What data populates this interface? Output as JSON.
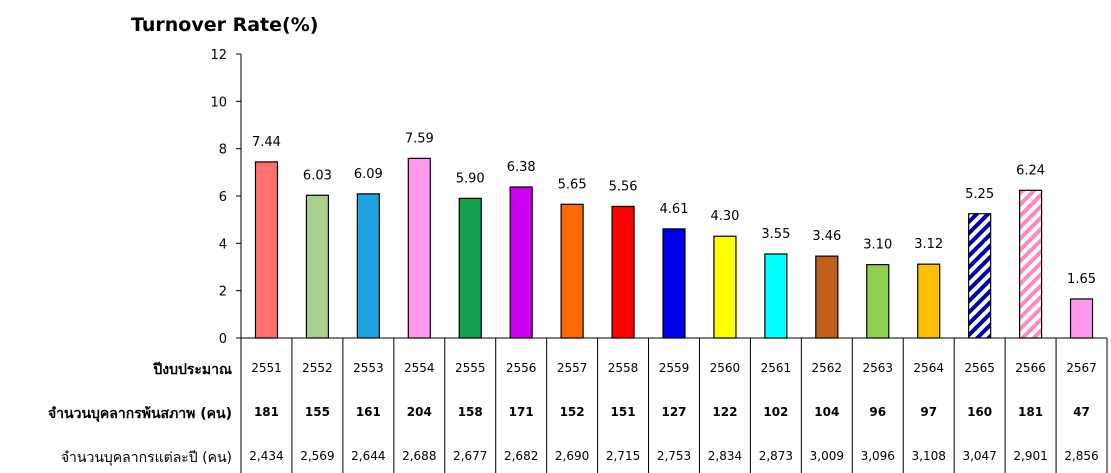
{
  "chart_data": {
    "type": "bar",
    "title": "Turnover Rate(%)",
    "ylim": [
      0,
      12
    ],
    "yticks": [
      0,
      2,
      4,
      6,
      8,
      10,
      12
    ],
    "categories": [
      "2551",
      "2552",
      "2553",
      "2554",
      "2555",
      "2556",
      "2557",
      "2558",
      "2559",
      "2560",
      "2561",
      "2562",
      "2563",
      "2564",
      "2565",
      "2566",
      "2567"
    ],
    "values": [
      7.44,
      6.03,
      6.09,
      7.59,
      5.9,
      6.38,
      5.65,
      5.56,
      4.61,
      4.3,
      3.55,
      3.46,
      3.1,
      3.12,
      5.25,
      6.24,
      1.65
    ],
    "value_labels": [
      "7.44",
      "6.03",
      "6.09",
      "7.59",
      "5.90",
      "6.38",
      "5.65",
      "5.56",
      "4.61",
      "4.30",
      "3.55",
      "3.46",
      "3.10",
      "3.12",
      "5.25",
      "6.24",
      "1.65"
    ],
    "bar_colors": [
      "#ff7070",
      "#a9d08e",
      "#1fa2e0",
      "#ff99ee",
      "#14a04a",
      "#cc00ee",
      "#ff6a00",
      "#ff0000",
      "#0000ee",
      "#ffff00",
      "#00ffff",
      "#c0601a",
      "#92d050",
      "#ffc000",
      "#0000aa",
      "#ff88c0",
      "#ff99ee"
    ],
    "bar_patterns": [
      "solid",
      "solid",
      "solid",
      "solid",
      "solid",
      "solid",
      "solid",
      "solid",
      "solid",
      "solid",
      "solid",
      "solid",
      "solid",
      "solid",
      "hatch",
      "hatch",
      "solid"
    ],
    "grid": false
  },
  "table": {
    "rows": [
      {
        "label": "ปีงบประมาณ",
        "bold": true,
        "values": [
          "2551",
          "2552",
          "2553",
          "2554",
          "2555",
          "2556",
          "2557",
          "2558",
          "2559",
          "2560",
          "2561",
          "2562",
          "2563",
          "2564",
          "2565",
          "2566",
          "2567"
        ]
      },
      {
        "label": "จำนวนบุคลากรพ้นสภาพ (คน)",
        "bold": true,
        "values": [
          "181",
          "155",
          "161",
          "204",
          "158",
          "171",
          "152",
          "151",
          "127",
          "122",
          "102",
          "104",
          "96",
          "97",
          "160",
          "181",
          "47"
        ]
      },
      {
        "label": "จำนวนบุคลากรแต่ละปี (คน)",
        "bold": false,
        "values": [
          "2,434",
          "2,569",
          "2,644",
          "2,688",
          "2,677",
          "2,682",
          "2,690",
          "2,715",
          "2,753",
          "2,834",
          "2,873",
          "3,009",
          "3,096",
          "3,108",
          "3,047",
          "2,901",
          "2,856"
        ]
      }
    ]
  }
}
